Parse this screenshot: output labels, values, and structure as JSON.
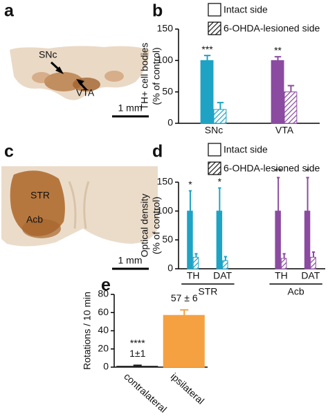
{
  "panel_labels": [
    "a",
    "b",
    "c",
    "d",
    "e"
  ],
  "images": [
    {
      "labels": [
        "SNc",
        "VTA"
      ],
      "scale_bar": "1 mm"
    },
    {
      "labels": [
        "STR",
        "Acb"
      ],
      "scale_bar": "1 mm"
    }
  ],
  "chart_data": [
    {
      "type": "bar",
      "ylabel": [
        "TH+ cell bodies",
        "(% of control)"
      ],
      "categories": [
        "SNc",
        "VTA"
      ],
      "category_colors": [
        "#1fa3c4",
        "#8b4ba0"
      ],
      "series": [
        {
          "name": "Intact side",
          "pattern": "solid",
          "values": [
            100,
            100
          ],
          "errors": [
            8,
            6
          ]
        },
        {
          "name": "6-OHDA-lesioned side",
          "pattern": "hatch",
          "values": [
            22,
            50
          ],
          "errors": [
            11,
            10
          ]
        }
      ],
      "annotations": [
        "***",
        "**"
      ],
      "ylim": [
        0,
        150
      ],
      "yticks": [
        0,
        50,
        100,
        150
      ]
    },
    {
      "type": "bar",
      "ylabel": [
        "Optical density",
        "(% of control)"
      ],
      "groups": [
        {
          "name": "STR",
          "categories": [
            "TH",
            "DAT"
          ]
        },
        {
          "name": "Acb",
          "categories": [
            "TH",
            "DAT"
          ]
        }
      ],
      "category_colors": [
        "#1fa3c4",
        "#1fa3c4",
        "#8b4ba0",
        "#8b4ba0"
      ],
      "series": [
        {
          "name": "Intact side",
          "pattern": "solid",
          "values": [
            100,
            100,
            100,
            100
          ],
          "errors": [
            35,
            40,
            58,
            58
          ]
        },
        {
          "name": "6-OHDA-lesioned side",
          "pattern": "hatch",
          "values": [
            20,
            14,
            18,
            20
          ],
          "errors": [
            6,
            7,
            8,
            9
          ]
        }
      ],
      "annotations": [
        "*",
        "*",
        "**",
        "*"
      ],
      "ylim": [
        0,
        150
      ],
      "yticks": [
        0,
        50,
        100,
        150
      ]
    },
    {
      "type": "bar",
      "ylabel": "Rotations  / 10 min",
      "categories": [
        "contralateral",
        "ipsilateral"
      ],
      "category_colors": [
        "#1a1a1a",
        "#f5a142"
      ],
      "series": [
        {
          "pattern": "solid",
          "values": [
            1,
            57
          ],
          "errors": [
            1,
            6
          ],
          "value_labels": [
            "1±1",
            "57 ± 6"
          ]
        }
      ],
      "annotations": [
        "****",
        null
      ],
      "ylim": [
        0,
        80
      ],
      "yticks": [
        0,
        20,
        40,
        60,
        80
      ]
    }
  ]
}
